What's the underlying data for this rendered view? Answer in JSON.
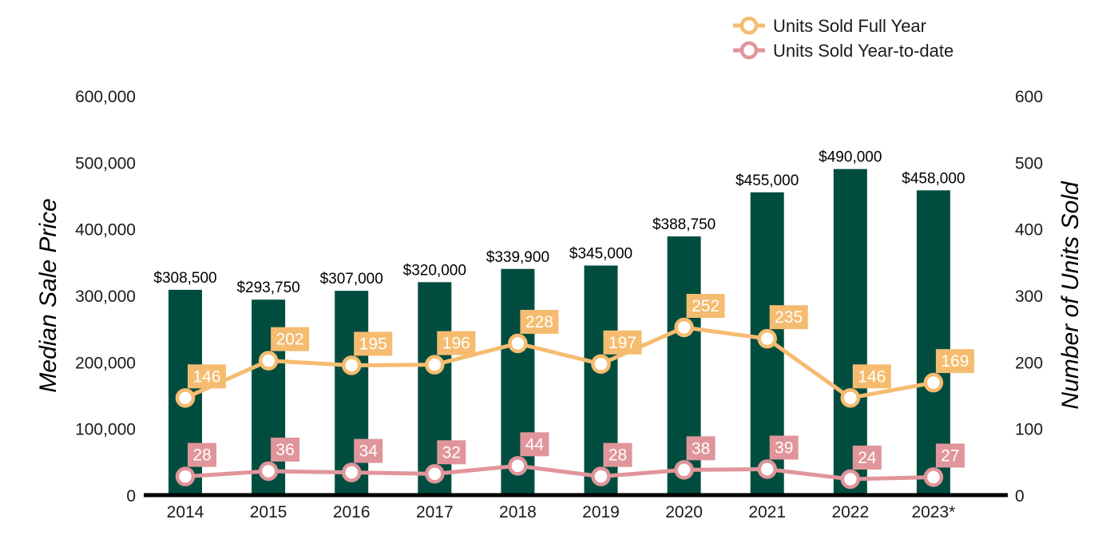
{
  "chart_data": {
    "type": "bar",
    "categories": [
      "2014",
      "2015",
      "2016",
      "2017",
      "2018",
      "2019",
      "2020",
      "2021",
      "2022",
      "2023*"
    ],
    "bar_series": {
      "values": [
        308500,
        293750,
        307000,
        320000,
        339900,
        345000,
        388750,
        455000,
        490000,
        458000
      ],
      "labels": [
        "$308,500",
        "$293,750",
        "$307,000",
        "$320,000",
        "$339,900",
        "$345,000",
        "$388,750",
        "$455,000",
        "$490,000",
        "$458,000"
      ],
      "color": "#004d40"
    },
    "line_series": [
      {
        "name": "Units Sold Full Year",
        "values": [
          146,
          202,
          195,
          196,
          228,
          197,
          252,
          235,
          146,
          169
        ],
        "color": "#f5bc70"
      },
      {
        "name": "Units Sold Year-to-date",
        "values": [
          28,
          36,
          34,
          32,
          44,
          28,
          38,
          39,
          24,
          27
        ],
        "color": "#e0959b"
      }
    ],
    "ylabel_left": "Median Sale Price",
    "ylabel_right": "Number of Units Sold",
    "ylim_left": [
      0,
      600000
    ],
    "ylim_right": [
      0,
      600
    ],
    "yticks_left": [
      "0",
      "100,000",
      "200,000",
      "300,000",
      "400,000",
      "500,000",
      "600,000"
    ],
    "yticks_right": [
      "0",
      "100",
      "200",
      "300",
      "400",
      "500",
      "600"
    ],
    "legend_position": "top-right",
    "grid": false
  }
}
